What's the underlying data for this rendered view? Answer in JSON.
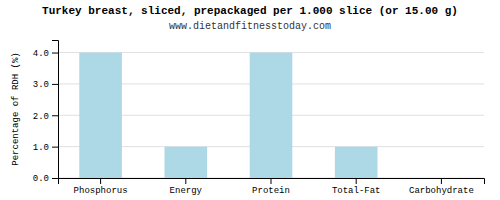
{
  "chart_data": {
    "type": "bar",
    "title": "Turkey breast, sliced, prepackaged per 1.000 slice (or 15.00 g)",
    "subtitle": "www.dietandfitnesstoday.com",
    "categories": [
      "Phosphorus",
      "Energy",
      "Protein",
      "Total-Fat",
      "Carbohydrate"
    ],
    "values": [
      4.0,
      1.0,
      4.0,
      1.0,
      0.0
    ],
    "color": "#add8e6",
    "ylabel": "Percentage of RDH (%)",
    "ylim": [
      0,
      4.4
    ],
    "yticks": [
      {
        "value": 0.0,
        "label": "0.0"
      },
      {
        "value": 1.0,
        "label": "1.0"
      },
      {
        "value": 2.0,
        "label": "2.0"
      },
      {
        "value": 3.0,
        "label": "3.0"
      },
      {
        "value": 4.0,
        "label": "4.0"
      }
    ],
    "grid": true
  }
}
